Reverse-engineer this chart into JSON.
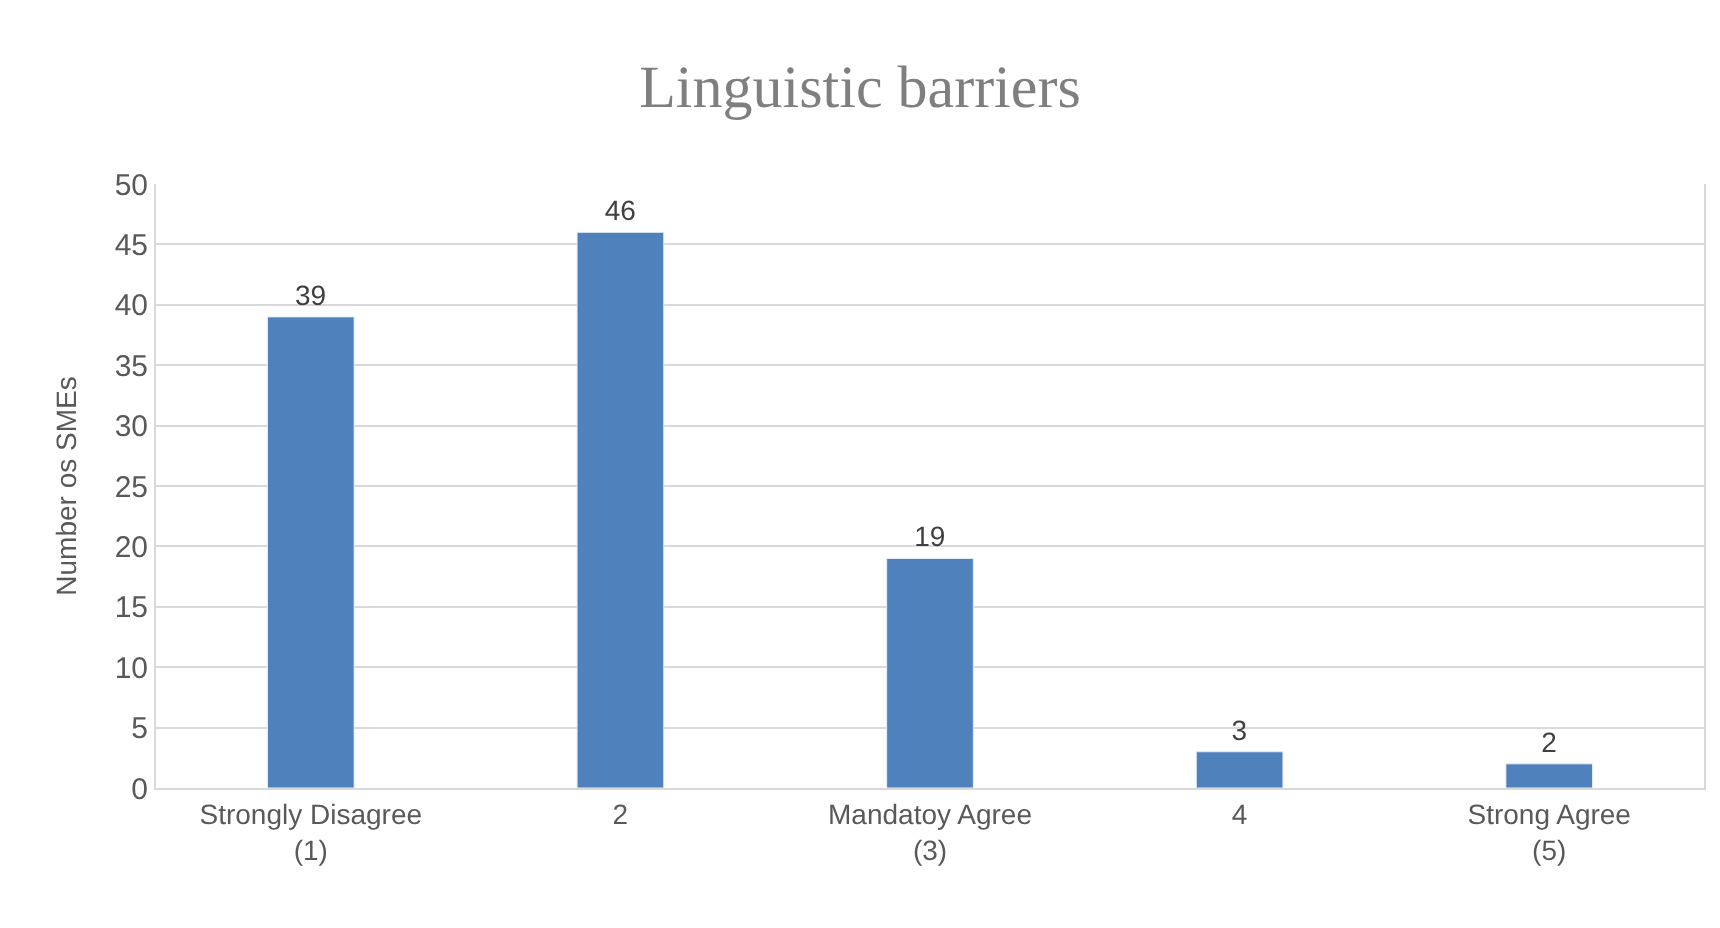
{
  "chart_data": {
    "type": "bar",
    "title": "Linguistic barriers",
    "ylabel": "Number os SMEs",
    "categories": [
      "Strongly Disagree\n(1)",
      "2",
      "Mandatoy Agree\n(3)",
      "4",
      "Strong Agree\n(5)"
    ],
    "values": [
      39,
      46,
      19,
      3,
      2
    ],
    "color": "#4f81bd",
    "ylim": [
      0,
      50
    ],
    "yticks": [
      0,
      5,
      10,
      15,
      20,
      25,
      30,
      35,
      40,
      45,
      50
    ],
    "grid": "y",
    "data_labels": true
  }
}
